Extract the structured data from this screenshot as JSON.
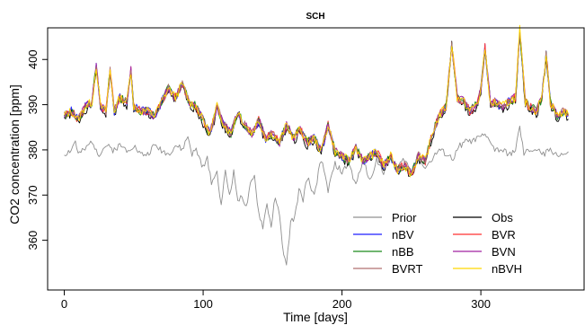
{
  "chart_data": {
    "type": "line",
    "title": "SCH",
    "xlabel": "Time [days]",
    "ylabel": "CO2 concentration [ppm]",
    "xlim": [
      -12,
      375
    ],
    "ylim": [
      349,
      407
    ],
    "xticks": [
      0,
      100,
      200,
      300
    ],
    "yticks": [
      360,
      370,
      380,
      390,
      400
    ],
    "grid": false,
    "legend_position": "bottom-right",
    "legend_columns": 2,
    "series": [
      {
        "name": "Prior",
        "color": "#909090",
        "style": "prior"
      },
      {
        "name": "Obs",
        "color": "#000000",
        "style": "obs"
      },
      {
        "name": "nBV",
        "color": "#1f1fff",
        "style": "model",
        "seed": 3
      },
      {
        "name": "BVR",
        "color": "#ff3030",
        "style": "model",
        "seed": 5
      },
      {
        "name": "nBB",
        "color": "#1a8a1a",
        "style": "model",
        "seed": 7
      },
      {
        "name": "BVN",
        "color": "#a020a0",
        "style": "model",
        "seed": 9
      },
      {
        "name": "BVRT",
        "color": "#b07070",
        "style": "model",
        "seed": 11
      },
      {
        "name": "nBVH",
        "color": "#ffd700",
        "style": "model",
        "seed": 13
      }
    ],
    "anchors": {
      "obs": [
        [
          0,
          387
        ],
        [
          5,
          388
        ],
        [
          10,
          386
        ],
        [
          15,
          389
        ],
        [
          20,
          390
        ],
        [
          23,
          398
        ],
        [
          26,
          389
        ],
        [
          30,
          388
        ],
        [
          33,
          397
        ],
        [
          36,
          388
        ],
        [
          40,
          391
        ],
        [
          45,
          390
        ],
        [
          48,
          397
        ],
        [
          50,
          389
        ],
        [
          55,
          388
        ],
        [
          60,
          388
        ],
        [
          65,
          387
        ],
        [
          70,
          390
        ],
        [
          75,
          393
        ],
        [
          80,
          391
        ],
        [
          85,
          394
        ],
        [
          90,
          390
        ],
        [
          95,
          389
        ],
        [
          100,
          386
        ],
        [
          105,
          383
        ],
        [
          110,
          389
        ],
        [
          115,
          385
        ],
        [
          120,
          383
        ],
        [
          125,
          388
        ],
        [
          130,
          385
        ],
        [
          135,
          383
        ],
        [
          140,
          386
        ],
        [
          145,
          382
        ],
        [
          150,
          383
        ],
        [
          155,
          381
        ],
        [
          160,
          385
        ],
        [
          165,
          382
        ],
        [
          170,
          384
        ],
        [
          175,
          381
        ],
        [
          180,
          382
        ],
        [
          185,
          379
        ],
        [
          190,
          385
        ],
        [
          195,
          379
        ],
        [
          200,
          378
        ],
        [
          205,
          377
        ],
        [
          210,
          380
        ],
        [
          215,
          377
        ],
        [
          220,
          378
        ],
        [
          225,
          379
        ],
        [
          230,
          376
        ],
        [
          235,
          378
        ],
        [
          240,
          375
        ],
        [
          245,
          376
        ],
        [
          250,
          374
        ],
        [
          255,
          378
        ],
        [
          260,
          377
        ],
        [
          265,
          383
        ],
        [
          270,
          387
        ],
        [
          275,
          389
        ],
        [
          279,
          403
        ],
        [
          283,
          391
        ],
        [
          288,
          390
        ],
        [
          292,
          388
        ],
        [
          298,
          390
        ],
        [
          300,
          393
        ],
        [
          303,
          402
        ],
        [
          307,
          389
        ],
        [
          310,
          390
        ],
        [
          315,
          389
        ],
        [
          320,
          390
        ],
        [
          325,
          391
        ],
        [
          328,
          406
        ],
        [
          332,
          390
        ],
        [
          335,
          389
        ],
        [
          340,
          388
        ],
        [
          344,
          391
        ],
        [
          347,
          401
        ],
        [
          350,
          390
        ],
        [
          355,
          387
        ],
        [
          360,
          388
        ],
        [
          363,
          387
        ]
      ],
      "prior": [
        [
          0,
          379
        ],
        [
          5,
          380
        ],
        [
          8,
          382
        ],
        [
          10,
          379
        ],
        [
          15,
          380
        ],
        [
          20,
          382
        ],
        [
          25,
          379
        ],
        [
          30,
          381
        ],
        [
          35,
          380
        ],
        [
          40,
          381
        ],
        [
          45,
          380
        ],
        [
          50,
          381
        ],
        [
          55,
          379
        ],
        [
          60,
          379
        ],
        [
          65,
          381
        ],
        [
          70,
          380
        ],
        [
          75,
          379
        ],
        [
          80,
          381
        ],
        [
          85,
          380
        ],
        [
          89,
          383
        ],
        [
          92,
          379
        ],
        [
          95,
          380
        ],
        [
          100,
          376
        ],
        [
          103,
          378
        ],
        [
          106,
          373
        ],
        [
          110,
          375
        ],
        [
          113,
          368
        ],
        [
          116,
          375
        ],
        [
          119,
          370
        ],
        [
          122,
          375
        ],
        [
          125,
          369
        ],
        [
          128,
          370
        ],
        [
          131,
          367
        ],
        [
          134,
          372
        ],
        [
          137,
          374
        ],
        [
          140,
          366
        ],
        [
          143,
          363
        ],
        [
          146,
          368
        ],
        [
          149,
          363
        ],
        [
          152,
          370
        ],
        [
          155,
          365
        ],
        [
          158,
          357
        ],
        [
          160,
          354
        ],
        [
          163,
          364
        ],
        [
          166,
          365
        ],
        [
          169,
          371
        ],
        [
          172,
          369
        ],
        [
          175,
          374
        ],
        [
          180,
          370
        ],
        [
          185,
          378
        ],
        [
          190,
          371
        ],
        [
          195,
          377
        ],
        [
          200,
          375
        ],
        [
          205,
          377
        ],
        [
          210,
          372
        ],
        [
          215,
          378
        ],
        [
          220,
          373
        ],
        [
          225,
          378
        ],
        [
          230,
          375
        ],
        [
          235,
          379
        ],
        [
          240,
          376
        ],
        [
          245,
          378
        ],
        [
          250,
          375
        ],
        [
          255,
          379
        ],
        [
          260,
          376
        ],
        [
          265,
          378
        ],
        [
          270,
          380
        ],
        [
          275,
          379
        ],
        [
          280,
          378
        ],
        [
          285,
          381
        ],
        [
          290,
          382
        ],
        [
          295,
          382
        ],
        [
          300,
          383
        ],
        [
          303,
          383
        ],
        [
          307,
          382
        ],
        [
          310,
          380
        ],
        [
          315,
          380
        ],
        [
          320,
          379
        ],
        [
          325,
          380
        ],
        [
          328,
          385
        ],
        [
          331,
          379
        ],
        [
          335,
          380
        ],
        [
          340,
          380
        ],
        [
          345,
          379
        ],
        [
          350,
          380
        ],
        [
          355,
          379
        ],
        [
          360,
          379
        ]
      ]
    }
  }
}
